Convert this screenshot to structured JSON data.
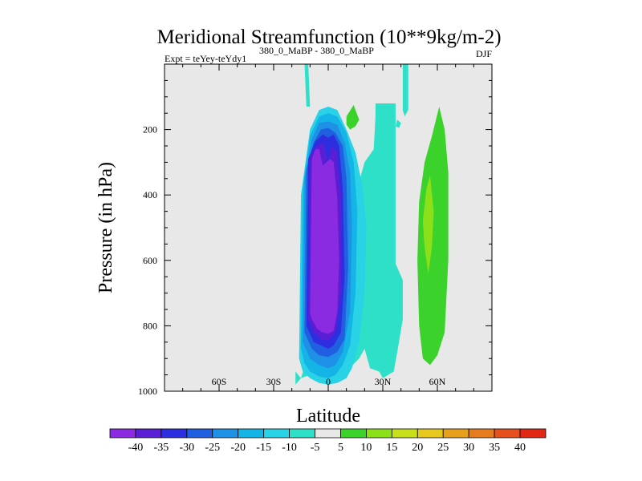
{
  "chart_data": {
    "type": "heatmap",
    "title": "Meridional Streamfunction (10**9kg/m-2)",
    "subtitle_left": "Expt = teYey-teYdy1",
    "subtitle_center": "380_0_MaBP - 380_0_MaBP",
    "subtitle_right": "DJF",
    "xlabel": "Latitude",
    "ylabel": "Pressure (in hPa)",
    "xlim": [
      -90,
      90
    ],
    "ylim": [
      1000,
      0
    ],
    "x_ticks": [
      -60,
      -30,
      0,
      30,
      60
    ],
    "x_tick_labels": [
      "60S",
      "30S",
      "0",
      "30N",
      "60N"
    ],
    "y_ticks": [
      200,
      400,
      600,
      800,
      1000
    ],
    "y_tick_labels": [
      "200",
      "400",
      "600",
      "800",
      "1000"
    ],
    "background_color": "#e8e8e8",
    "colorbar": {
      "labels": [
        "-40",
        "-35",
        "-30",
        "-25",
        "-20",
        "-15",
        "-10",
        "-5",
        "5",
        "10",
        "15",
        "20",
        "25",
        "30",
        "35",
        "40"
      ],
      "colors": [
        "#8a2be2",
        "#5a1fd4",
        "#2d2ee0",
        "#1f5fe0",
        "#1e90e6",
        "#14b4e6",
        "#2ad2e6",
        "#2ee0c8",
        "#e8e8e8",
        "#3cd22c",
        "#8ce01a",
        "#c8e01c",
        "#e6c81e",
        "#e6a01e",
        "#e67c1e",
        "#e6501e",
        "#e02814"
      ]
    },
    "regions": [
      {
        "name": "sh-cell-outer",
        "color": "#2ee0c8",
        "lat": [
          -18,
          -15,
          -11,
          -7,
          0,
          5,
          10,
          15,
          20,
          25,
          26,
          26,
          37,
          37,
          41,
          41,
          38,
          36,
          30,
          28,
          23,
          20,
          17,
          10,
          6,
          0,
          -4,
          -10,
          -15,
          -18
        ],
        "pres": [
          980,
          960,
          890,
          800,
          680,
          620,
          520,
          400,
          300,
          260,
          160,
          120,
          120,
          610,
          660,
          780,
          880,
          940,
          960,
          940,
          930,
          870,
          900,
          940,
          970,
          980,
          970,
          950,
          960,
          940
        ]
      },
      {
        "name": "sh-cell-10",
        "color": "#2ad2e6",
        "lat": [
          -16,
          -15,
          -10,
          -5,
          0,
          5,
          10,
          15,
          19,
          21,
          20,
          17,
          13,
          10,
          5,
          0,
          -5,
          -10,
          -14,
          -16
        ],
        "pres": [
          900,
          400,
          200,
          140,
          130,
          140,
          200,
          270,
          380,
          500,
          700,
          850,
          930,
          960,
          975,
          980,
          975,
          960,
          940,
          900
        ]
      },
      {
        "name": "sh-cell-15",
        "color": "#14b4e6",
        "lat": [
          -15,
          -14,
          -10,
          -5,
          0,
          5,
          10,
          14,
          16,
          15,
          12,
          8,
          4,
          0,
          -5,
          -10,
          -13,
          -15
        ],
        "pres": [
          870,
          380,
          220,
          160,
          150,
          160,
          210,
          300,
          450,
          700,
          860,
          920,
          950,
          960,
          955,
          940,
          915,
          870
        ]
      },
      {
        "name": "sh-cell-20",
        "color": "#1e90e6",
        "lat": [
          -14,
          -13,
          -9,
          -5,
          0,
          5,
          9,
          12,
          13,
          12,
          8,
          4,
          0,
          -5,
          -10,
          -14
        ],
        "pres": [
          850,
          350,
          230,
          180,
          175,
          185,
          240,
          330,
          500,
          760,
          880,
          920,
          930,
          920,
          900,
          850
        ]
      },
      {
        "name": "sh-cell-25",
        "color": "#1f5fe0",
        "lat": [
          -13,
          -12,
          -8,
          -4,
          0,
          4,
          8,
          10,
          11,
          9,
          5,
          0,
          -5,
          -9,
          -13
        ],
        "pres": [
          820,
          320,
          240,
          200,
          195,
          210,
          250,
          350,
          620,
          840,
          880,
          895,
          890,
          870,
          820
        ]
      },
      {
        "name": "sh-cell-30",
        "color": "#2d2ee0",
        "lat": [
          -12,
          -11,
          -7,
          -3,
          0,
          3,
          6,
          8,
          9,
          7,
          3,
          0,
          -4,
          -8,
          -12
        ],
        "pres": [
          800,
          290,
          235,
          215,
          225,
          215,
          250,
          380,
          650,
          820,
          860,
          870,
          860,
          850,
          800
        ]
      },
      {
        "name": "sh-cell-35",
        "color": "#5a1fd4",
        "lat": [
          -11,
          -10,
          -6,
          -3,
          0,
          2,
          5,
          7,
          7,
          4,
          0,
          -4,
          -8,
          -11
        ],
        "pres": [
          780,
          280,
          250,
          240,
          300,
          250,
          270,
          400,
          700,
          820,
          845,
          840,
          820,
          780
        ]
      },
      {
        "name": "sh-cell-40",
        "color": "#8a2be2",
        "lat": [
          -10,
          -9,
          -7,
          -5,
          -3,
          -1,
          1,
          3,
          5,
          6,
          5,
          3,
          0,
          -3,
          -6,
          -9,
          -10
        ],
        "pres": [
          760,
          290,
          260,
          260,
          310,
          300,
          290,
          300,
          410,
          600,
          760,
          815,
          825,
          820,
          810,
          780,
          760
        ]
      },
      {
        "name": "nh-strip-upper",
        "color": "#2ee0c8",
        "lat": [
          -13,
          -11,
          -10,
          -12
        ],
        "pres": [
          0,
          0,
          130,
          130
        ]
      },
      {
        "name": "nh-strip-upper-2",
        "color": "#2ee0c8",
        "lat": [
          41,
          44,
          44,
          42,
          41
        ],
        "pres": [
          0,
          0,
          140,
          160,
          140
        ]
      },
      {
        "name": "small-green-blob",
        "color": "#3cd22c",
        "lat": [
          10,
          14,
          17,
          15,
          12,
          10
        ],
        "pres": [
          160,
          125,
          170,
          190,
          200,
          185
        ]
      },
      {
        "name": "small-teal-blob",
        "color": "#2ee0c8",
        "lat": [
          38,
          40,
          39,
          37
        ],
        "pres": [
          170,
          180,
          195,
          190
        ]
      },
      {
        "name": "nh-cell-5",
        "color": "#3cd22c",
        "lat": [
          50,
          53,
          57,
          61,
          64,
          66,
          66,
          64,
          60,
          56,
          52,
          50,
          49,
          50
        ],
        "pres": [
          420,
          300,
          220,
          130,
          200,
          330,
          600,
          820,
          890,
          920,
          900,
          800,
          600,
          420
        ]
      },
      {
        "name": "nh-cell-10",
        "color": "#8ce01a",
        "lat": [
          52,
          54,
          56,
          58,
          57,
          55,
          53,
          52
        ],
        "pres": [
          480,
          380,
          340,
          450,
          560,
          640,
          560,
          480
        ]
      }
    ]
  }
}
